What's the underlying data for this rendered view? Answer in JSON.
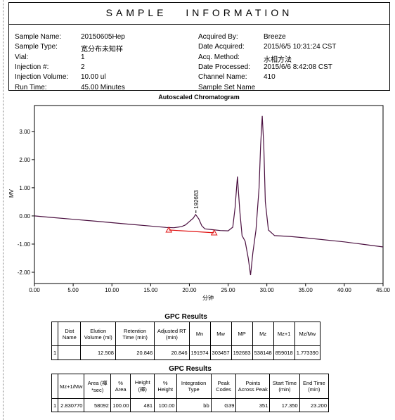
{
  "header": {
    "title": "SAMPLE INFORMATION",
    "left_fields": [
      {
        "label": "Sample Name:",
        "value": "20150605Hep"
      },
      {
        "label": "Sample Type:",
        "value": "宽分布未知样"
      },
      {
        "label": "Vial:",
        "value": "1"
      },
      {
        "label": "Injection #:",
        "value": "2"
      },
      {
        "label": "Injection Volume:",
        "value": "10.00 ul"
      },
      {
        "label": "Run Time:",
        "value": "45.00 Minutes"
      }
    ],
    "right_fields": [
      {
        "label": "Acquired By:",
        "value": "Breeze"
      },
      {
        "label": "Date Acquired:",
        "value": "2015/6/5 10:31:24 CST"
      },
      {
        "label": "Acq. Method:",
        "value": "水相方法"
      },
      {
        "label": "Date Processed:",
        "value": "2015/6/6 8:42:08 CST"
      },
      {
        "label": "Channel Name:",
        "value": "410"
      },
      {
        "label": "Sample Set Name"
      }
    ]
  },
  "chart_data": {
    "type": "line",
    "title": "Autoscaled Chromatogram",
    "x_label": "分钟",
    "y_label": "MV",
    "xlim": [
      0,
      45
    ],
    "ylim": [
      -2.4,
      3.92
    ],
    "xticks": [
      {
        "value": 0,
        "label": "0.00"
      },
      {
        "value": 5,
        "label": "5.00"
      },
      {
        "value": 10,
        "label": "10.00"
      },
      {
        "value": 15,
        "label": "15.00"
      },
      {
        "value": 20,
        "label": "20.00"
      },
      {
        "value": 25,
        "label": "25.00"
      },
      {
        "value": 30,
        "label": "30.00"
      },
      {
        "value": 35,
        "label": "35.00"
      },
      {
        "value": 40,
        "label": "40.00"
      },
      {
        "value": 45,
        "label": "45.00"
      }
    ],
    "yticks": [
      {
        "value": -2,
        "label": "-2.00"
      },
      {
        "value": -1,
        "label": "-1.00"
      },
      {
        "value": 0,
        "label": "0.00"
      },
      {
        "value": 1,
        "label": "1.00"
      },
      {
        "value": 2,
        "label": "2.00"
      },
      {
        "value": 3,
        "label": "3.00"
      }
    ],
    "series": [
      {
        "color": "#4b1040",
        "x": [
          0,
          2,
          5,
          8,
          10,
          12,
          15,
          17,
          18,
          19,
          19.5,
          20,
          20.5,
          20.8,
          21.2,
          21.6,
          22,
          23,
          24,
          25,
          25.6,
          25.9,
          26.2,
          26.5,
          26.8,
          27.2,
          27.6,
          27.9,
          28.2,
          28.6,
          29,
          29.2,
          29.4,
          29.6,
          29.8,
          30.2,
          31,
          33,
          35,
          40,
          45
        ],
        "values": [
          0.0,
          -0.05,
          -0.12,
          -0.19,
          -0.24,
          -0.29,
          -0.36,
          -0.41,
          -0.42,
          -0.38,
          -0.32,
          -0.2,
          -0.08,
          0.05,
          -0.1,
          -0.35,
          -0.46,
          -0.49,
          -0.52,
          -0.53,
          -0.4,
          0.3,
          1.4,
          0.2,
          -0.7,
          -0.9,
          -1.5,
          -2.1,
          -1.3,
          -0.5,
          1.0,
          2.5,
          3.55,
          2.5,
          0.5,
          -0.5,
          -0.7,
          -0.73,
          -0.78,
          -0.92,
          -1.1
        ]
      },
      {
        "color": "#e01010",
        "x": [
          17.35,
          23.2
        ],
        "values": [
          -0.5,
          -0.6
        ]
      }
    ],
    "annotations": [
      {
        "text": "192683",
        "x": 20.846,
        "y": 0.05
      }
    ]
  },
  "table1": {
    "title": "GPC Results",
    "header": [
      "Dist Name",
      "Elution Volume (ml)",
      "Retention Time (min)",
      "Adjusted RT (min)",
      "Mn",
      "Mw",
      "MP",
      "Mz",
      "Mz+1",
      "Mz/Mw"
    ],
    "rows": [
      {
        "no": "1",
        "cells": [
          "12.508",
          "20.846",
          "20.846",
          "191974",
          "303457",
          "192683",
          "538148",
          "859018",
          "1.773390"
        ]
      }
    ]
  },
  "table2": {
    "title": "GPC Results",
    "header": [
      "Mz+1/Mw",
      "Area (褌*sec)",
      "% Area",
      "Height (褌)",
      "% Height",
      "Integration Type",
      "Peak Codes",
      "Points Across Peak",
      "Start Time (min)",
      "End Time (min)"
    ],
    "rows": [
      {
        "no": "1",
        "cells": [
          "2.830770",
          "58092",
          "100.00",
          "481",
          "100.00",
          "bb",
          "G39",
          "351",
          "17.350",
          "23.200"
        ]
      }
    ]
  }
}
